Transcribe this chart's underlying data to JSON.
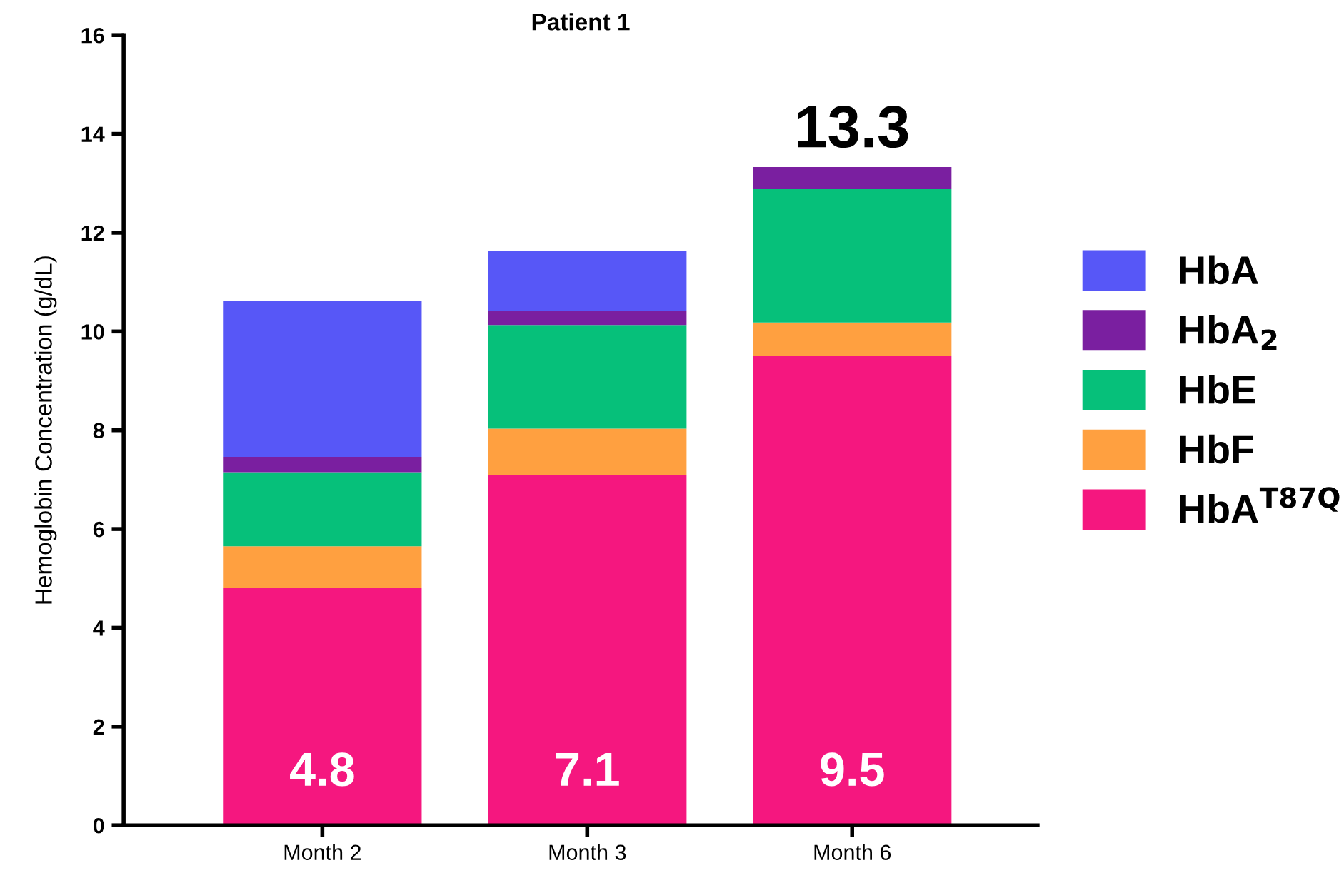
{
  "chart_data": {
    "type": "bar",
    "title": "Patient 1",
    "ylabel": "Hemoglobin Concentration (g/dL)",
    "categories": [
      "Month 2",
      "Month 3",
      "Month 6"
    ],
    "stacked": true,
    "series": [
      {
        "name": "HbA$^{T87Q}$",
        "color": "#f5177f",
        "values": [
          4.8,
          7.1,
          9.5
        ],
        "value_labels": [
          "4.8",
          "7.1",
          "9.5"
        ]
      },
      {
        "name": "HbF",
        "color": "#ffa040",
        "values": [
          0.85,
          0.93,
          0.68
        ]
      },
      {
        "name": "HbE",
        "color": "#06c07a",
        "values": [
          1.5,
          2.1,
          2.7
        ]
      },
      {
        "name": "HbA$_{2}$",
        "color": "#7a1fa0",
        "values": [
          0.31,
          0.28,
          0.45
        ]
      },
      {
        "name": "HbA",
        "color": "#5757f7",
        "values": [
          3.15,
          1.22,
          0
        ]
      }
    ],
    "totals": [
      null,
      null,
      "13.3"
    ],
    "ylim": [
      0,
      16
    ],
    "yticks": [
      0,
      2,
      4,
      6,
      8,
      10,
      12,
      14,
      16
    ],
    "grid": false,
    "legend": "right"
  }
}
